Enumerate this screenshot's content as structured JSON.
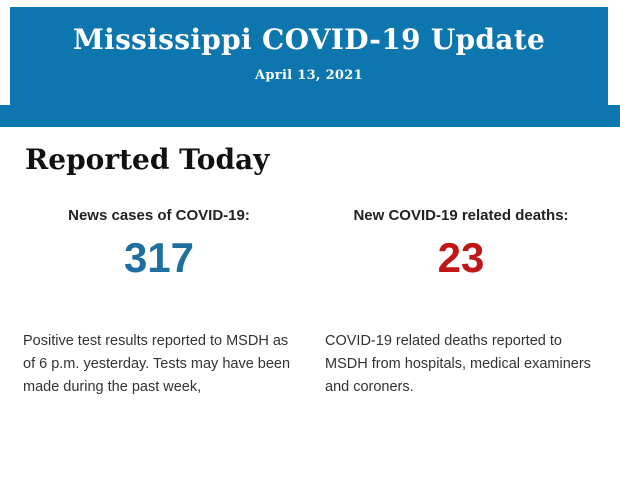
{
  "banner": {
    "title": "Mississippi COVID-19 Update",
    "date": "April 13, 2021",
    "background_color": "#0e76ae",
    "text_color": "#ffffff"
  },
  "section": {
    "heading": "Reported Today"
  },
  "stats": {
    "cases": {
      "label": "News cases of COVID-19:",
      "value": "317",
      "value_color": "#1e6e9e",
      "description": "Positive test results reported to MSDH as of 6 p.m. yesterday. Tests may have been made during the past week,"
    },
    "deaths": {
      "label": "New COVID-19 related deaths:",
      "value": "23",
      "value_color": "#c21616",
      "description": "COVID-19 related deaths reported to MSDH from hospitals, medical examiners and coroners."
    }
  }
}
